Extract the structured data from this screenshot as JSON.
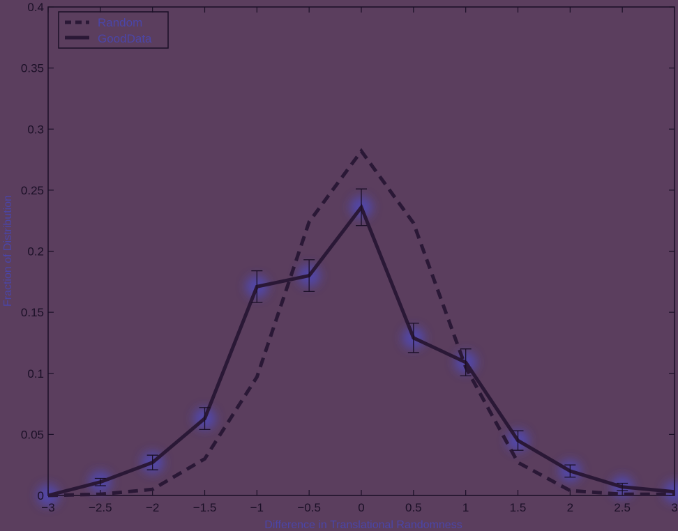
{
  "colors": {
    "background": "#5b3e5e",
    "ink": "#1a0f26",
    "label": "#4b45a8",
    "glow": "#4a4fe6"
  },
  "chart_data": {
    "type": "line",
    "xlabel": "Difference in Translational Randomness",
    "ylabel": "Fraction of Distribution",
    "xlim": [
      -3,
      3
    ],
    "ylim": [
      0,
      0.4
    ],
    "x_ticks": [
      -3,
      -2.5,
      -2,
      -1.5,
      -1,
      -0.5,
      0,
      0.5,
      1,
      1.5,
      2,
      2.5,
      3
    ],
    "x_tick_labels": [
      "−3",
      "−2.5",
      "−2",
      "−1.5",
      "−1",
      "−0.5",
      "0",
      "0.5",
      "1",
      "1.5",
      "2",
      "2.5",
      "3"
    ],
    "y_ticks": [
      0,
      0.05,
      0.1,
      0.15,
      0.2,
      0.25,
      0.3,
      0.35,
      0.4
    ],
    "y_tick_labels": [
      "0",
      "0.05",
      "0.1",
      "0.15",
      "0.2",
      "0.25",
      "0.3",
      "0.35",
      "0.4"
    ],
    "grid": false,
    "legend_position": "top-left",
    "series": [
      {
        "name": "Random",
        "style": "dashed",
        "x": [
          -3,
          -2.5,
          -2,
          -1.5,
          -1,
          -0.5,
          0,
          0.5,
          1,
          1.5,
          2,
          2.5,
          3
        ],
        "y": [
          0,
          0.001,
          0.005,
          0.03,
          0.097,
          0.224,
          0.282,
          0.223,
          0.105,
          0.027,
          0.004,
          0.001,
          0.001
        ]
      },
      {
        "name": "GoodData",
        "style": "solid",
        "x": [
          -3,
          -2.5,
          -2,
          -1.5,
          -1,
          -0.5,
          0,
          0.5,
          1,
          1.5,
          2,
          2.5,
          3
        ],
        "y": [
          0,
          0.011,
          0.027,
          0.063,
          0.171,
          0.18,
          0.236,
          0.129,
          0.109,
          0.045,
          0.02,
          0.007,
          0.003
        ],
        "err": [
          0,
          0.003,
          0.006,
          0.009,
          0.013,
          0.013,
          0.015,
          0.012,
          0.011,
          0.008,
          0.005,
          0.003,
          0
        ]
      }
    ]
  }
}
